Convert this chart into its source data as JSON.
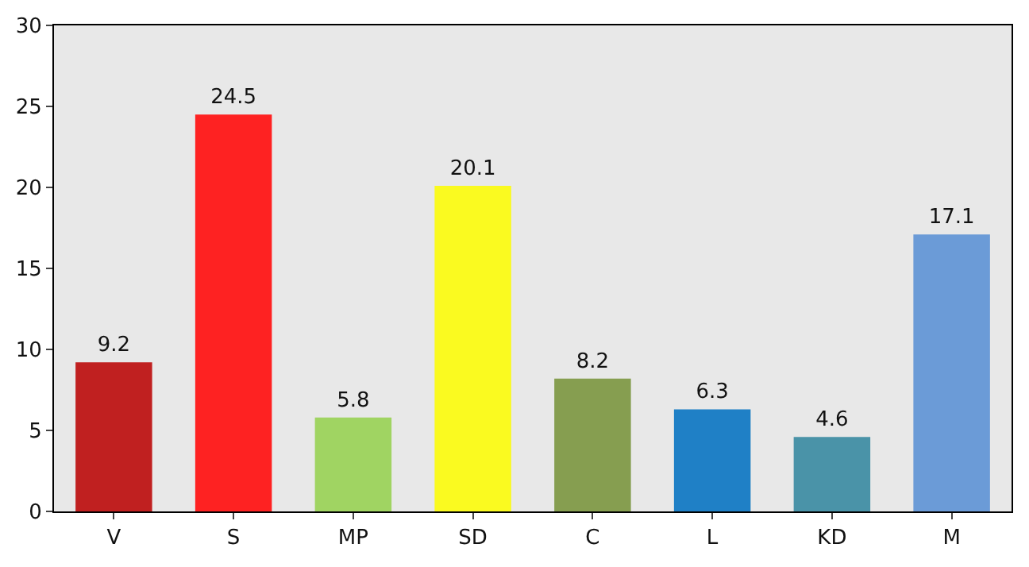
{
  "chart_data": {
    "type": "bar",
    "categories": [
      "V",
      "S",
      "MP",
      "SD",
      "C",
      "L",
      "KD",
      "M"
    ],
    "values": [
      9.2,
      24.5,
      5.8,
      20.1,
      8.2,
      6.3,
      4.6,
      17.1
    ],
    "colors": [
      "#c02020",
      "#fe2222",
      "#a0d462",
      "#fafa20",
      "#869e50",
      "#1f80c6",
      "#4a93a8",
      "#6b9bd7"
    ],
    "ylim": [
      0,
      30
    ],
    "yticks": [
      0,
      5,
      10,
      15,
      20,
      25,
      30
    ],
    "data_labels": true
  }
}
